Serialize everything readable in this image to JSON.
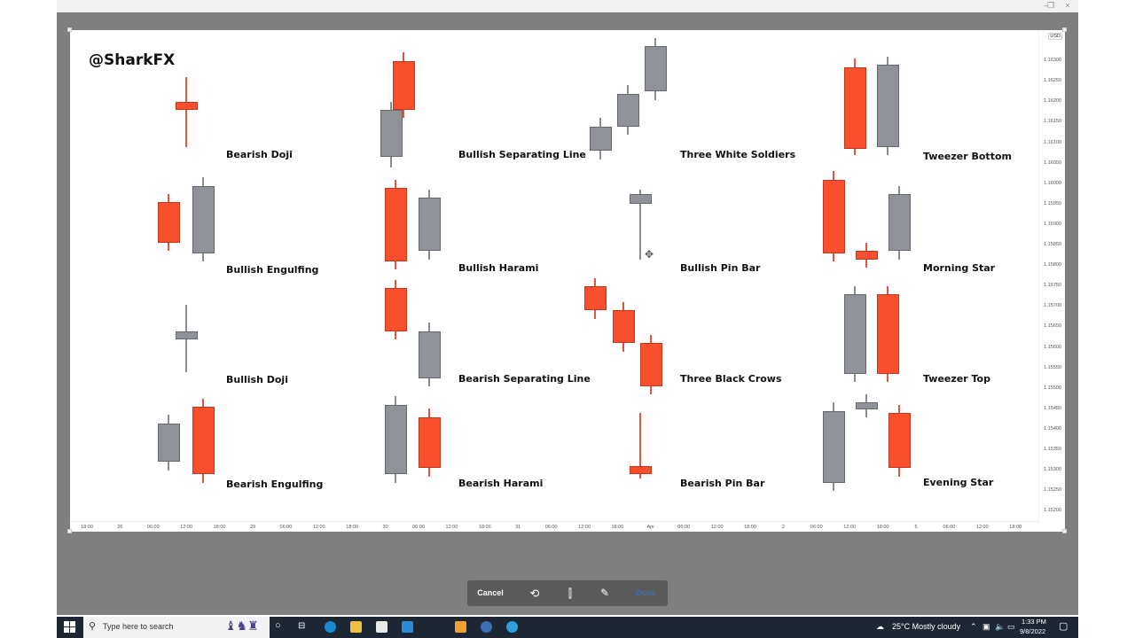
{
  "window": {
    "controls": [
      "minimize",
      "restore",
      "close"
    ],
    "minimize_label": "–",
    "restore_label": "❐",
    "close_label": "×"
  },
  "chart": {
    "brand": "@SharkFX",
    "currency": "USD",
    "y_ticks": [
      "1.16350",
      "1.16300",
      "1.16250",
      "1.16200",
      "1.16150",
      "1.16100",
      "1.16050",
      "1.16000",
      "1.15950",
      "1.15900",
      "1.15850",
      "1.15800",
      "1.15750",
      "1.15700",
      "1.15650",
      "1.15600",
      "1.15550",
      "1.15500",
      "1.15450",
      "1.15400",
      "1.15350",
      "1.15300",
      "1.15250",
      "1.15200"
    ],
    "x_ticks": [
      "18:00",
      "26",
      "06:00",
      "12:00",
      "18:00",
      "29",
      "06:00",
      "12:00",
      "18:00",
      "30",
      "06:00",
      "12:00",
      "18:00",
      "31",
      "06:00",
      "12:00",
      "18:00",
      "Apr",
      "06:00",
      "12:00",
      "18:00",
      "2",
      "06:00",
      "12:00",
      "18:00",
      "5",
      "06:00",
      "12:00",
      "18:00"
    ],
    "colors": {
      "up_red": "#fa4f2d",
      "down_gray": "#8f9298",
      "up_border": "#c0391f",
      "down_border": "#65686c"
    },
    "patterns": [
      {
        "label": "Bearish Doji"
      },
      {
        "label": "Bullish Separating Line"
      },
      {
        "label": "Three White Soldiers"
      },
      {
        "label": "Tweezer Bottom"
      },
      {
        "label": "Bullish Engulfing"
      },
      {
        "label": "Bullish Harami"
      },
      {
        "label": "Bullish Pin Bar"
      },
      {
        "label": "Morning Star"
      },
      {
        "label": "Bullish Doji"
      },
      {
        "label": "Bearish Separating Line"
      },
      {
        "label": "Three Black Crows"
      },
      {
        "label": "Tweezer Top"
      },
      {
        "label": "Bearish Engulfing"
      },
      {
        "label": "Bearish Harami"
      },
      {
        "label": "Bearish Pin Bar"
      },
      {
        "label": "Evening Star"
      }
    ]
  },
  "chart_data": {
    "type": "candlestick",
    "title": "@SharkFX",
    "ylabel": "USD",
    "ylim": [
      1.152,
      1.1635
    ],
    "x_tick_labels": [
      "18:00",
      "26",
      "06:00",
      "12:00",
      "18:00",
      "29",
      "06:00",
      "12:00",
      "18:00",
      "30",
      "06:00",
      "12:00",
      "18:00",
      "31",
      "06:00",
      "12:00",
      "18:00",
      "Apr",
      "06:00",
      "12:00",
      "18:00",
      "2",
      "06:00",
      "12:00",
      "18:00",
      "5",
      "06:00",
      "12:00",
      "18:00"
    ],
    "color_legend": {
      "red": "up candle",
      "gray": "down candle"
    },
    "annotations": [
      "Bearish Doji",
      "Bullish Separating Line",
      "Three White Soldiers",
      "Tweezer Bottom",
      "Bullish Engulfing",
      "Bullish Harami",
      "Bullish Pin Bar",
      "Morning Star",
      "Bullish Doji",
      "Bearish Separating Line",
      "Three Black Crows",
      "Tweezer Top",
      "Bearish Engulfing",
      "Bearish Harami",
      "Bearish Pin Bar",
      "Evening Star"
    ],
    "candles": [
      {
        "pattern": "Bearish Doji",
        "color": "red",
        "open": 1.1617,
        "close": 1.1619,
        "high": 1.1625,
        "low": 1.1608
      },
      {
        "pattern": "Bullish Separating Line",
        "color": "gray",
        "open": 1.1617,
        "close": 1.16055,
        "high": 1.1619,
        "low": 1.1603
      },
      {
        "pattern": "Bullish Separating Line",
        "color": "red",
        "open": 1.1617,
        "close": 1.1629,
        "high": 1.1631,
        "low": 1.1615
      },
      {
        "pattern": "Three White Soldiers",
        "color": "gray",
        "open": 1.1613,
        "close": 1.1607,
        "high": 1.1615,
        "low": 1.1605
      },
      {
        "pattern": "Three White Soldiers",
        "color": "gray",
        "open": 1.1621,
        "close": 1.1613,
        "high": 1.1623,
        "low": 1.1611
      },
      {
        "pattern": "Three White Soldiers",
        "color": "gray",
        "open": 1.16325,
        "close": 1.16215,
        "high": 1.16345,
        "low": 1.16195
      },
      {
        "pattern": "Tweezer Bottom",
        "color": "red",
        "open": 1.16075,
        "close": 1.16275,
        "high": 1.16295,
        "low": 1.1606
      },
      {
        "pattern": "Tweezer Bottom",
        "color": "gray",
        "open": 1.1628,
        "close": 1.1608,
        "high": 1.163,
        "low": 1.1606
      },
      {
        "pattern": "Bullish Engulfing",
        "color": "red",
        "open": 1.15845,
        "close": 1.15945,
        "high": 1.15965,
        "low": 1.15825
      },
      {
        "pattern": "Bullish Engulfing",
        "color": "gray",
        "open": 1.15985,
        "close": 1.1582,
        "high": 1.16005,
        "low": 1.158
      },
      {
        "pattern": "Bullish Harami",
        "color": "red",
        "open": 1.158,
        "close": 1.1598,
        "high": 1.16,
        "low": 1.1578
      },
      {
        "pattern": "Bullish Harami",
        "color": "gray",
        "open": 1.15955,
        "close": 1.15825,
        "high": 1.15975,
        "low": 1.15805
      },
      {
        "pattern": "Bullish Pin Bar",
        "color": "gray",
        "open": 1.15965,
        "close": 1.1594,
        "high": 1.15975,
        "low": 1.15805
      },
      {
        "pattern": "Morning Star",
        "color": "red",
        "open": 1.1582,
        "close": 1.16,
        "high": 1.1602,
        "low": 1.158
      },
      {
        "pattern": "Morning Star",
        "color": "red",
        "open": 1.15805,
        "close": 1.15825,
        "high": 1.15845,
        "low": 1.15785
      },
      {
        "pattern": "Morning Star",
        "color": "gray",
        "open": 1.15965,
        "close": 1.15825,
        "high": 1.15985,
        "low": 1.15805
      },
      {
        "pattern": "Bullish Doji",
        "color": "gray",
        "open": 1.1563,
        "close": 1.1561,
        "high": 1.15695,
        "low": 1.1553
      },
      {
        "pattern": "Bearish Separating Line",
        "color": "red",
        "open": 1.1563,
        "close": 1.15735,
        "high": 1.15755,
        "low": 1.1561
      },
      {
        "pattern": "Bearish Separating Line",
        "color": "gray",
        "open": 1.1563,
        "close": 1.15515,
        "high": 1.1565,
        "low": 1.15495
      },
      {
        "pattern": "Three Black Crows",
        "color": "red",
        "open": 1.1568,
        "close": 1.1574,
        "high": 1.1576,
        "low": 1.1566
      },
      {
        "pattern": "Three Black Crows",
        "color": "red",
        "open": 1.156,
        "close": 1.1568,
        "high": 1.157,
        "low": 1.1558
      },
      {
        "pattern": "Three Black Crows",
        "color": "red",
        "open": 1.15495,
        "close": 1.156,
        "high": 1.1562,
        "low": 1.15475
      },
      {
        "pattern": "Tweezer Top",
        "color": "gray",
        "open": 1.1572,
        "close": 1.15525,
        "high": 1.1574,
        "low": 1.15505
      },
      {
        "pattern": "Tweezer Top",
        "color": "red",
        "open": 1.15525,
        "close": 1.1572,
        "high": 1.1574,
        "low": 1.15505
      },
      {
        "pattern": "Bearish Engulfing",
        "color": "gray",
        "open": 1.15405,
        "close": 1.1531,
        "high": 1.15425,
        "low": 1.1529
      },
      {
        "pattern": "Bearish Engulfing",
        "color": "red",
        "open": 1.1528,
        "close": 1.15445,
        "high": 1.15465,
        "low": 1.1526
      },
      {
        "pattern": "Bearish Harami",
        "color": "gray",
        "open": 1.1545,
        "close": 1.1528,
        "high": 1.1547,
        "low": 1.1526
      },
      {
        "pattern": "Bearish Harami",
        "color": "red",
        "open": 1.15295,
        "close": 1.1542,
        "high": 1.1544,
        "low": 1.15275
      },
      {
        "pattern": "Bearish Pin Bar",
        "color": "red",
        "open": 1.1528,
        "close": 1.153,
        "high": 1.1543,
        "low": 1.1527
      },
      {
        "pattern": "Evening Star",
        "color": "gray",
        "open": 1.15435,
        "close": 1.1526,
        "high": 1.15455,
        "low": 1.1524
      },
      {
        "pattern": "Evening Star",
        "color": "gray",
        "open": 1.15455,
        "close": 1.1544,
        "high": 1.15475,
        "low": 1.1542
      },
      {
        "pattern": "Evening Star",
        "color": "red",
        "open": 1.15295,
        "close": 1.1543,
        "high": 1.1545,
        "low": 1.15275
      }
    ]
  },
  "editor_toolbar": {
    "cancel": "Cancel",
    "rotate_icon": "rotate-icon",
    "flip_icon": "flip-icon",
    "markup_icon": "brush-icon",
    "done": "Done"
  },
  "taskbar": {
    "search_placeholder": "Type here to search",
    "weather": "25°C  Mostly cloudy",
    "time": "1:33 PM",
    "date": "9/8/2022"
  }
}
